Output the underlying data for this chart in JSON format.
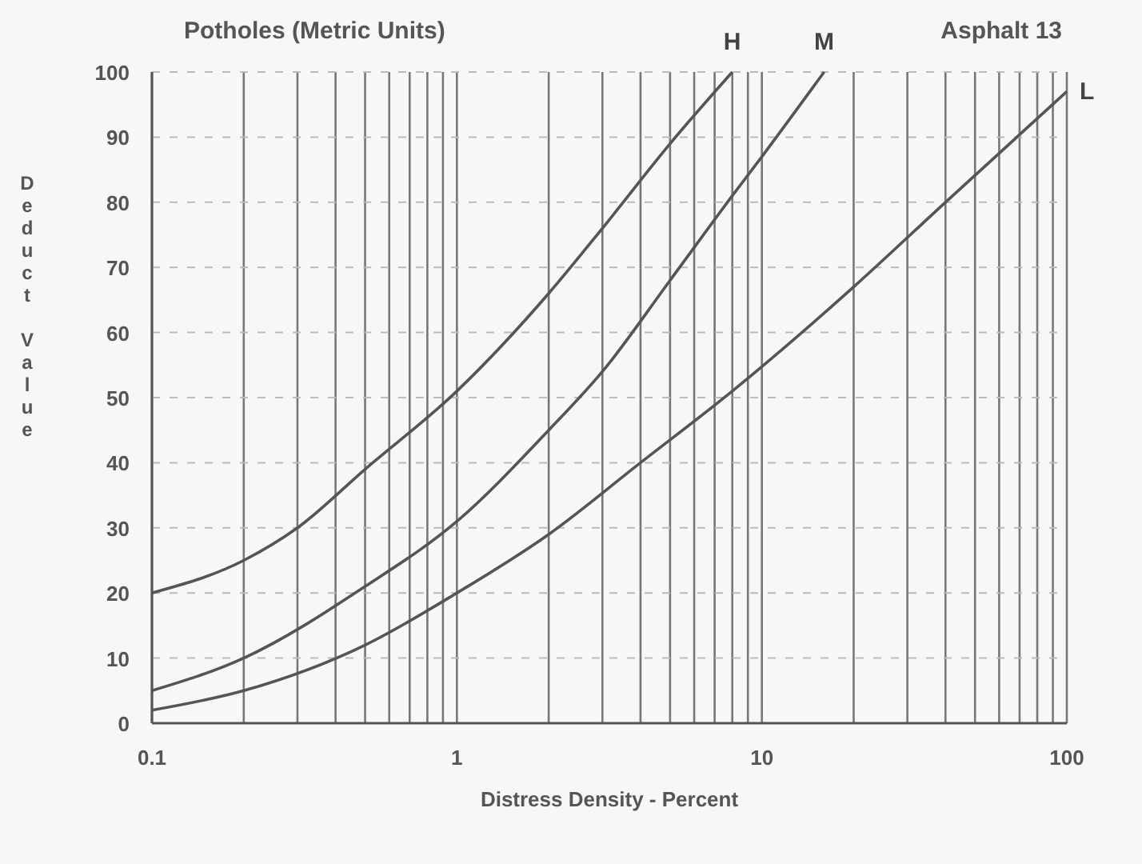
{
  "chart_data": {
    "type": "line",
    "title": "Potholes (Metric Units)",
    "subtitle": "Asphalt 13",
    "xlabel": "Distress Density - Percent",
    "ylabel": "Deduct Value",
    "log": "x",
    "grid": true,
    "marker": "none",
    "line_style": "solid",
    "xlim": [
      0.1,
      100
    ],
    "ylim": [
      0,
      100
    ],
    "xticks": [
      0.1,
      {
        "value": 0.2,
        "label": null
      },
      {
        "value": 0.3,
        "label": null
      },
      {
        "value": 0.4,
        "label": null
      },
      {
        "value": 0.5,
        "label": null
      },
      {
        "value": 0.6,
        "label": null
      },
      {
        "value": 0.7,
        "label": null
      },
      {
        "value": 0.8,
        "label": null
      },
      {
        "value": 0.9,
        "label": null
      },
      1,
      {
        "value": 2,
        "label": null
      },
      {
        "value": 3,
        "label": null
      },
      {
        "value": 4,
        "label": null
      },
      {
        "value": 5,
        "label": null
      },
      {
        "value": 6,
        "label": null
      },
      {
        "value": 7,
        "label": null
      },
      {
        "value": 8,
        "label": null
      },
      {
        "value": 9,
        "label": null
      },
      10,
      {
        "value": 20,
        "label": null
      },
      {
        "value": 30,
        "label": null
      },
      {
        "value": 40,
        "label": null
      },
      {
        "value": 50,
        "label": null
      },
      {
        "value": 60,
        "label": null
      },
      {
        "value": 70,
        "label": null
      },
      {
        "value": 80,
        "label": null
      },
      {
        "value": 90,
        "label": null
      },
      100
    ],
    "yticks": [
      0,
      10,
      20,
      30,
      40,
      50,
      60,
      70,
      80,
      90,
      100
    ],
    "series": [
      {
        "name": "H",
        "color": "#555555",
        "x": [
          0.1,
          0.2,
          0.3,
          0.5,
          1,
          2,
          3,
          5,
          8
        ],
        "values": [
          20,
          25,
          30,
          39,
          51,
          66,
          76,
          89,
          100
        ]
      },
      {
        "name": "M",
        "color": "#555555",
        "x": [
          0.1,
          0.2,
          0.5,
          1,
          2,
          3,
          5,
          8,
          10,
          16
        ],
        "values": [
          5,
          10,
          21,
          31,
          45,
          54,
          68,
          81,
          87,
          100
        ]
      },
      {
        "name": "L",
        "color": "#555555",
        "x": [
          0.1,
          0.2,
          0.5,
          1,
          2,
          4,
          8,
          20,
          40,
          100
        ],
        "values": [
          2,
          5,
          12,
          20,
          29,
          40,
          51,
          67,
          80,
          97
        ]
      }
    ]
  }
}
